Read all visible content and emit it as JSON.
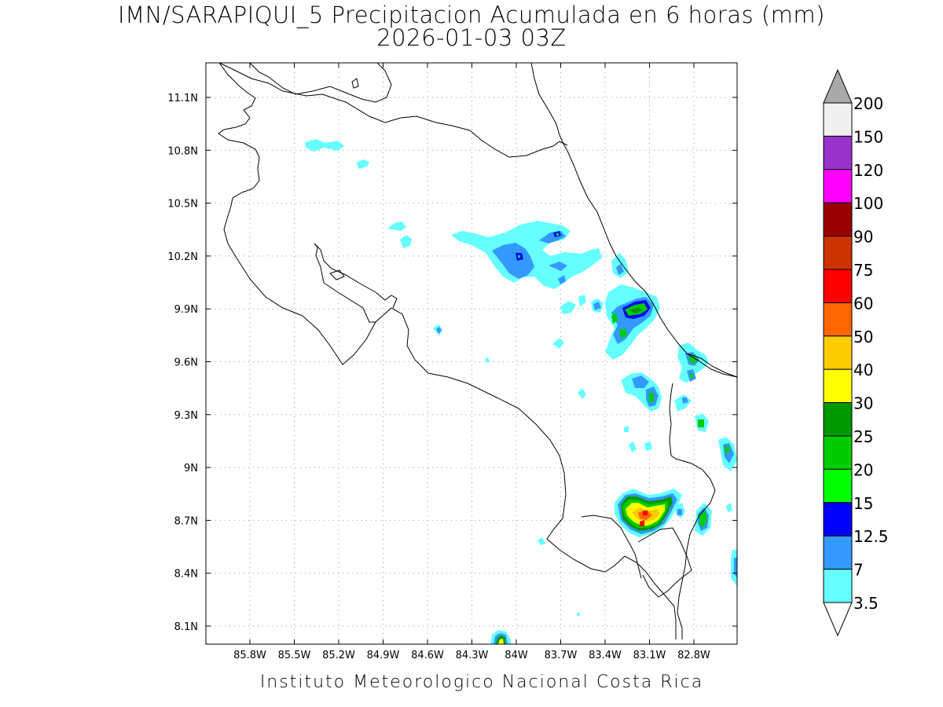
{
  "title_line1": "IMN/SARAPIQUI_5 Precipitacion Acumulada en 6 horas (mm)",
  "title_line2": "2026-01-03 03Z",
  "footer": "Instituto Meteorologico Nacional Costa Rica",
  "map": {
    "lon_range": [
      -86.07,
      -82.55
    ],
    "lat_range": [
      8.0,
      11.3
    ],
    "lon_ticks": [
      "85.8W",
      "85.5W",
      "85.2W",
      "84.9W",
      "84.6W",
      "84.3W",
      "84W",
      "83.7W",
      "83.4W",
      "83.1W",
      "82.8W"
    ],
    "lat_ticks": [
      "11.1N",
      "10.8N",
      "10.5N",
      "10.2N",
      "9.9N",
      "9.6N",
      "9.3N",
      "9N",
      "8.7N",
      "8.4N",
      "8.1N"
    ],
    "grid": "dotted"
  },
  "colorbar": {
    "labels": [
      "200",
      "150",
      "120",
      "100",
      "90",
      "75",
      "60",
      "50",
      "40",
      "30",
      "25",
      "20",
      "15",
      "12.5",
      "7",
      "3.5"
    ],
    "colors": [
      "#f0f0f0",
      "#9933cc",
      "#ff00ff",
      "#990000",
      "#cc3300",
      "#ff0000",
      "#ff6600",
      "#ffcc00",
      "#ffff00",
      "#009900",
      "#00cc00",
      "#00ff00",
      "#0000ff",
      "#3399ff",
      "#66ffff"
    ],
    "top_arrow_color": "#a9a9a9",
    "bottom_arrow_color": "#ffffff"
  }
}
